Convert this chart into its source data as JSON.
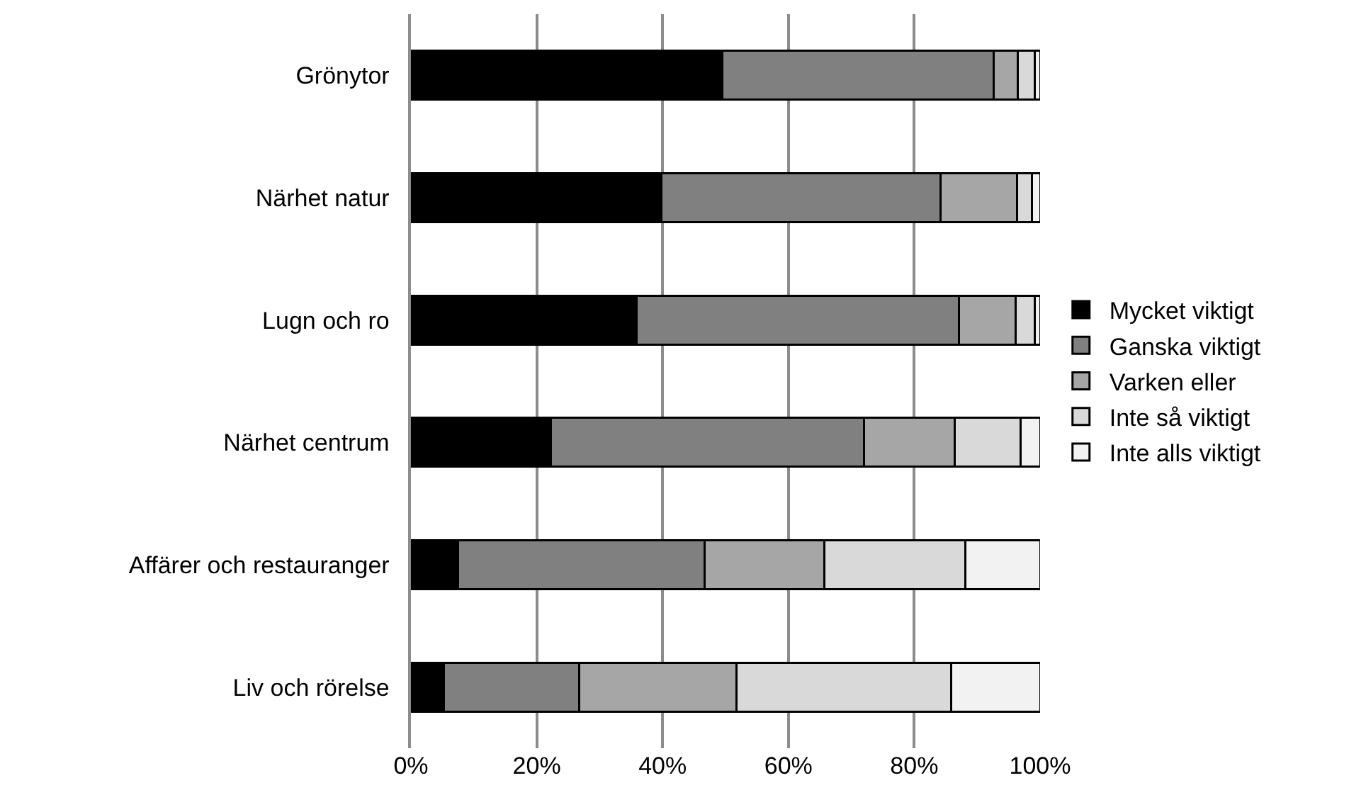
{
  "chart_data": {
    "type": "bar",
    "orientation": "horizontal",
    "stacked": true,
    "categories": [
      "Grönytor",
      "Närhet natur",
      "Lugn och ro",
      "Närhet centrum",
      "Affärer och restauranger",
      "Liv och rörelse"
    ],
    "series": [
      {
        "name": "Mycket viktigt",
        "color": "#000000",
        "values": [
          49.5,
          39.8,
          35.9,
          22.2,
          7.5,
          5.2
        ]
      },
      {
        "name": "Ganska viktigt",
        "color": "#808080",
        "values": [
          43.1,
          44.4,
          51.2,
          49.8,
          39.2,
          21.5
        ]
      },
      {
        "name": "Varken eller",
        "color": "#a6a6a6",
        "values": [
          3.9,
          12.1,
          9.0,
          14.4,
          19.0,
          25.0
        ]
      },
      {
        "name": "Inte så viktigt",
        "color": "#d9d9d9",
        "values": [
          2.7,
          2.4,
          3.1,
          10.5,
          22.4,
          34.2
        ]
      },
      {
        "name": "Inte alls viktigt",
        "color": "#f2f2f2",
        "values": [
          0.8,
          1.3,
          0.8,
          3.1,
          11.9,
          14.1
        ]
      }
    ],
    "xlim": [
      0,
      100
    ],
    "xticks": [
      {
        "value": 0,
        "label": "0%"
      },
      {
        "value": 20,
        "label": "20%"
      },
      {
        "value": 40,
        "label": "40%"
      },
      {
        "value": 60,
        "label": "60%"
      },
      {
        "value": 80,
        "label": "80%"
      },
      {
        "value": 100,
        "label": "100%"
      }
    ],
    "grid": "x",
    "legend": "right"
  }
}
